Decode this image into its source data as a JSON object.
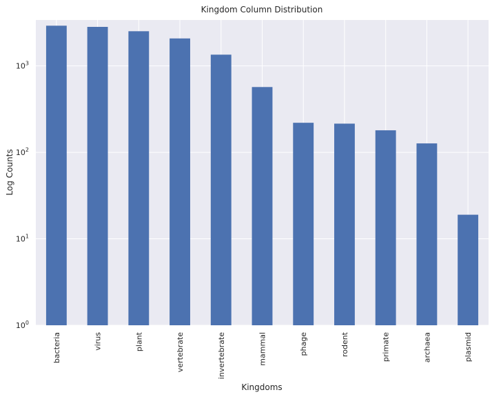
{
  "chart_data": {
    "type": "bar",
    "title": "Kingdom Column Distribution",
    "xlabel": "Kingdoms",
    "ylabel": "Log Counts",
    "yscale": "log",
    "ylim": [
      1,
      3400
    ],
    "yticks": [
      {
        "value": 1,
        "base": "10",
        "exp": "0"
      },
      {
        "value": 10,
        "base": "10",
        "exp": "1"
      },
      {
        "value": 100,
        "base": "10",
        "exp": "2"
      },
      {
        "value": 1000,
        "base": "10",
        "exp": "3"
      }
    ],
    "categories": [
      "bacteria",
      "virus",
      "plant",
      "vertebrate",
      "invertebrate",
      "mammal",
      "phage",
      "rodent",
      "primate",
      "archaea",
      "plasmid"
    ],
    "values": [
      2920,
      2830,
      2520,
      2080,
      1350,
      570,
      220,
      215,
      180,
      127,
      19
    ],
    "grid": true,
    "legend": false,
    "colors": {
      "bar": "#4c72b0",
      "plot_background": "#eaeaf2",
      "grid": "#ffffff",
      "text": "#262626"
    }
  }
}
